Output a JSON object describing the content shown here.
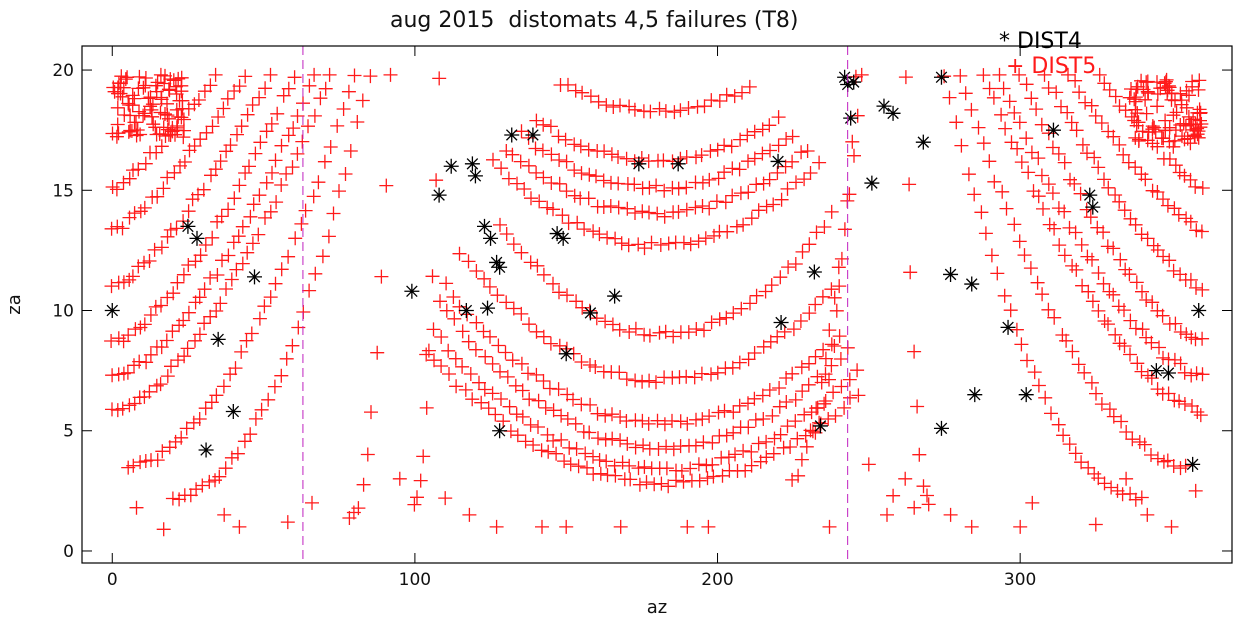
{
  "chart_data": {
    "type": "scatter",
    "title": "aug 2015  distomats 4,5 failures (T8)",
    "xlabel": "az",
    "ylabel": "za",
    "xlim": [
      -10,
      370
    ],
    "ylim": [
      -0.5,
      21
    ],
    "xticks": [
      0,
      100,
      200,
      300
    ],
    "yticks": [
      0,
      5,
      10,
      15,
      20
    ],
    "grid": false,
    "legend_placement": "top-right",
    "reference_lines_x": [
      63,
      243
    ],
    "series": [
      {
        "name": "DIST4",
        "marker": "asterisk",
        "color": "#000000",
        "points": [
          [
            0,
            10.0
          ],
          [
            25,
            13.5
          ],
          [
            28,
            13.0
          ],
          [
            31,
            4.2
          ],
          [
            35,
            8.8
          ],
          [
            40,
            5.8
          ],
          [
            47,
            11.4
          ],
          [
            99,
            10.8
          ],
          [
            108,
            14.8
          ],
          [
            112,
            16.0
          ],
          [
            117,
            10.0
          ],
          [
            119,
            16.1
          ],
          [
            120,
            15.6
          ],
          [
            123,
            13.5
          ],
          [
            124,
            10.1
          ],
          [
            125,
            13.0
          ],
          [
            127,
            12.0
          ],
          [
            128,
            11.8
          ],
          [
            128,
            5.0
          ],
          [
            132,
            17.3
          ],
          [
            139,
            17.3
          ],
          [
            147,
            13.2
          ],
          [
            149,
            13.0
          ],
          [
            150,
            8.2
          ],
          [
            158,
            9.9
          ],
          [
            166,
            10.6
          ],
          [
            174,
            16.1
          ],
          [
            187,
            16.1
          ],
          [
            220,
            16.2
          ],
          [
            221,
            9.5
          ],
          [
            232,
            11.6
          ],
          [
            234,
            5.2
          ],
          [
            242,
            19.7
          ],
          [
            243,
            19.4
          ],
          [
            244,
            18.0
          ],
          [
            245,
            19.5
          ],
          [
            251,
            15.3
          ],
          [
            255,
            18.5
          ],
          [
            258,
            18.2
          ],
          [
            268,
            17.0
          ],
          [
            274,
            19.7
          ],
          [
            274,
            5.1
          ],
          [
            277,
            11.5
          ],
          [
            284,
            11.1
          ],
          [
            285,
            6.5
          ],
          [
            296,
            9.3
          ],
          [
            302,
            6.5
          ],
          [
            311,
            17.5
          ],
          [
            323,
            14.8
          ],
          [
            324,
            14.3
          ],
          [
            345,
            7.5
          ],
          [
            349,
            7.4
          ],
          [
            357,
            3.6
          ],
          [
            359,
            10.0
          ]
        ]
      },
      {
        "name": "DIST5",
        "marker": "plus",
        "color": "#ff1a1a",
        "arcs": [
          {
            "center_x": 180,
            "bottom_za": 18.3,
            "curvature": 0.0011,
            "xlim": [
              148,
              212
            ],
            "step": 2.5
          },
          {
            "center_x": 180,
            "bottom_za": 16.2,
            "curvature": 0.0011,
            "xlim": [
              140,
              220
            ],
            "step": 2.5
          },
          {
            "center_x": 180,
            "bottom_za": 15.1,
            "curvature": 0.0011,
            "xlim": [
              135,
              225
            ],
            "step": 2.5
          },
          {
            "center_x": 180,
            "bottom_za": 14.0,
            "curvature": 0.0011,
            "xlim": [
              130,
              230
            ],
            "step": 2.5
          },
          {
            "center_x": 180,
            "bottom_za": 12.7,
            "curvature": 0.0012,
            "xlim": [
              126,
              234
            ],
            "step": 2.5
          },
          {
            "center_x": 182,
            "bottom_za": 9.0,
            "curvature": 0.0016,
            "xlim": [
              128,
              238
            ],
            "step": 2.5
          },
          {
            "center_x": 182,
            "bottom_za": 7.1,
            "curvature": 0.0012,
            "xlim": [
              115,
              240
            ],
            "step": 2.5
          },
          {
            "center_x": 182,
            "bottom_za": 5.3,
            "curvature": 0.0011,
            "xlim": [
              110,
              242
            ],
            "step": 2.5
          },
          {
            "center_x": 182,
            "bottom_za": 4.3,
            "curvature": 0.0011,
            "xlim": [
              108,
              244
            ],
            "step": 2.5
          },
          {
            "center_x": 182,
            "bottom_za": 3.4,
            "curvature": 0.001,
            "xlim": [
              106,
              246
            ],
            "step": 2.5
          },
          {
            "center_x": 182,
            "bottom_za": 2.8,
            "curvature": 0.0009,
            "xlim": [
              104,
              248
            ],
            "step": 2.5
          }
        ],
        "curves": [
          {
            "from": [
              0,
              5.8
            ],
            "to": [
              72,
              19.8
            ],
            "power": 1.6,
            "step": 1.8
          },
          {
            "from": [
              0,
              7.3
            ],
            "to": [
              67,
              19.8
            ],
            "power": 1.6,
            "step": 1.8
          },
          {
            "from": [
              0,
              8.7
            ],
            "to": [
              60,
              19.8
            ],
            "power": 1.5,
            "step": 1.8
          },
          {
            "from": [
              0,
              11.0
            ],
            "to": [
              52,
              19.8
            ],
            "power": 1.4,
            "step": 1.8
          },
          {
            "from": [
              0,
              13.3
            ],
            "to": [
              44,
              19.8
            ],
            "power": 1.3,
            "step": 1.8
          },
          {
            "from": [
              0,
              15.0
            ],
            "to": [
              34,
              19.8
            ],
            "power": 1.2,
            "step": 1.8
          },
          {
            "from": [
              5,
              3.5
            ],
            "to": [
              80,
              19.8
            ],
            "power": 1.8,
            "step": 2.0
          },
          {
            "from": [
              20,
              2.2
            ],
            "to": [
              85,
              19.8
            ],
            "power": 2.0,
            "step": 2.0
          },
          {
            "from": [
              360,
              5.8
            ],
            "to": [
              288,
              19.8
            ],
            "power": 1.6,
            "step": 1.8
          },
          {
            "from": [
              360,
              7.3
            ],
            "to": [
              293,
              19.8
            ],
            "power": 1.6,
            "step": 1.8
          },
          {
            "from": [
              360,
              8.7
            ],
            "to": [
              300,
              19.8
            ],
            "power": 1.5,
            "step": 1.8
          },
          {
            "from": [
              360,
              11.0
            ],
            "to": [
              308,
              19.8
            ],
            "power": 1.4,
            "step": 1.8
          },
          {
            "from": [
              360,
              13.3
            ],
            "to": [
              316,
              19.8
            ],
            "power": 1.3,
            "step": 1.8
          },
          {
            "from": [
              360,
              15.0
            ],
            "to": [
              326,
              19.8
            ],
            "power": 1.2,
            "step": 1.8
          },
          {
            "from": [
              355,
              3.5
            ],
            "to": [
              280,
              19.8
            ],
            "power": 1.8,
            "step": 2.0
          },
          {
            "from": [
              340,
              2.2
            ],
            "to": [
              275,
              19.8
            ],
            "power": 2.0,
            "step": 2.0
          },
          {
            "from": [
              78,
              1.5
            ],
            "to": [
              92,
              19.8
            ],
            "power": 2.5,
            "step": 1.5
          },
          {
            "from": [
              100,
              2.0
            ],
            "to": [
              108,
              19.8
            ],
            "power": 2.2,
            "step": 1.5
          },
          {
            "from": [
              225,
              3.0
            ],
            "to": [
              248,
              19.8
            ],
            "power": 1.6,
            "step": 1.5
          },
          {
            "from": [
              232,
              5.0
            ],
            "to": [
              246,
              19.8
            ],
            "power": 1.8,
            "step": 1.5
          },
          {
            "from": [
              270,
              2.0
            ],
            "to": [
              262,
              19.8
            ],
            "power": 2.2,
            "step": 1.5
          }
        ],
        "clusters": [
          {
            "center": [
              12,
              18.5
            ],
            "spread": [
              12,
              1.3
            ],
            "count": 90
          },
          {
            "center": [
              348,
              18.2
            ],
            "spread": [
              12,
              1.4
            ],
            "count": 90
          }
        ],
        "scatter_points": [
          [
            8,
            1.8
          ],
          [
            17,
            0.9
          ],
          [
            37,
            1.5
          ],
          [
            58,
            1.2
          ],
          [
            42,
            1.0
          ],
          [
            118,
            1.5
          ],
          [
            127,
            1.0
          ],
          [
            142,
            1.0
          ],
          [
            150,
            1.0
          ],
          [
            168,
            1.0
          ],
          [
            190,
            1.0
          ],
          [
            197,
            1.0
          ],
          [
            237,
            1.0
          ],
          [
            256,
            1.5
          ],
          [
            258,
            2.3
          ],
          [
            265,
            1.8
          ],
          [
            277,
            1.5
          ],
          [
            284,
            1.0
          ],
          [
            300,
            1.0
          ],
          [
            325,
            1.1
          ],
          [
            342,
            1.5
          ],
          [
            350,
            1.0
          ],
          [
            358,
            2.5
          ],
          [
            95,
            3.0
          ],
          [
            66,
            2.0
          ],
          [
            110,
            2.2
          ],
          [
            250,
            3.6
          ],
          [
            262,
            3.0
          ],
          [
            304,
            2.0
          ],
          [
            335,
            3.0
          ]
        ]
      }
    ]
  }
}
